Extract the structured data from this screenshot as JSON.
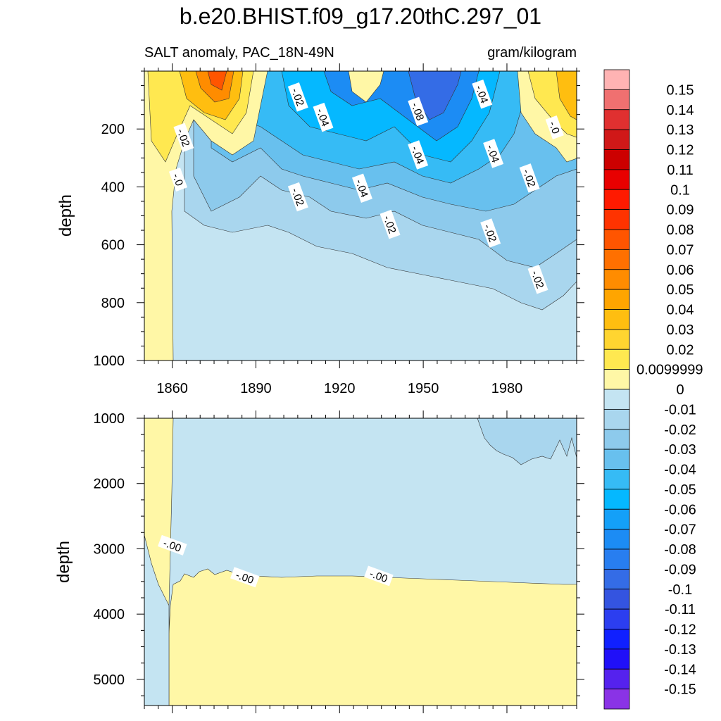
{
  "figure": {
    "title": "b.e20.BHIST.f09_g17.20thC.297_01",
    "subtitle_left": "SALT anomaly, PAC_18N-49N",
    "subtitle_right": "gram/kilogram"
  },
  "chart_data": {
    "type": "heatmap",
    "title": "b.e20.BHIST.f09_g17.20thC.297_01",
    "variable": "SALT anomaly, PAC_18N-49N",
    "units": "gram/kilogram",
    "xlabel": "",
    "ylabel": "depth",
    "x_range": [
      1850,
      2005
    ],
    "x_ticks": [
      1860,
      1890,
      1920,
      1950,
      1980
    ],
    "x_tick_labels": [
      "1860",
      "1890",
      "1920",
      "1950",
      "1980"
    ],
    "panels": [
      {
        "name": "upper",
        "ylabel": "depth",
        "ylim": [
          0,
          1000
        ],
        "y_inverted": true,
        "y_ticks": [
          200,
          400,
          600,
          800,
          1000
        ],
        "y_tick_labels": [
          "200",
          "400",
          "600",
          "800",
          "1000"
        ],
        "contour_labels": [
          {
            "text": "-.02",
            "x": 1905,
            "y": 90
          },
          {
            "text": "-.04",
            "x": 1914,
            "y": 160
          },
          {
            "text": "-.08",
            "x": 1948,
            "y": 140
          },
          {
            "text": "-.04",
            "x": 1971,
            "y": 80
          },
          {
            "text": "-.0",
            "x": 1997,
            "y": 195
          },
          {
            "text": "-.02",
            "x": 1864,
            "y": 230
          },
          {
            "text": "-.04",
            "x": 1948,
            "y": 290
          },
          {
            "text": "-.04",
            "x": 1975,
            "y": 285
          },
          {
            "text": "-.0",
            "x": 1862,
            "y": 375
          },
          {
            "text": "-.02",
            "x": 1905,
            "y": 435
          },
          {
            "text": "-.04",
            "x": 1928,
            "y": 405
          },
          {
            "text": "-.02",
            "x": 1988,
            "y": 370
          },
          {
            "text": "-.02",
            "x": 1938,
            "y": 530
          },
          {
            "text": "-.02",
            "x": 1974,
            "y": 560
          },
          {
            "text": "-.02",
            "x": 1991,
            "y": 720
          }
        ]
      },
      {
        "name": "lower",
        "ylabel": "depth",
        "ylim": [
          1000,
          5400
        ],
        "y_inverted": true,
        "y_ticks": [
          1000,
          2000,
          3000,
          4000,
          5000
        ],
        "y_tick_labels": [
          "1000",
          "2000",
          "3000",
          "4000",
          "5000"
        ],
        "contour_labels": [
          {
            "text": "-.00",
            "x": 1860,
            "y": 2950
          },
          {
            "text": "-.00",
            "x": 1886,
            "y": 3440
          },
          {
            "text": "-.00",
            "x": 1934,
            "y": 3420
          }
        ]
      }
    ],
    "colorbar": {
      "labels": [
        "0.15",
        "0.14",
        "0.13",
        "0.12",
        "0.11",
        "0.1",
        "0.09",
        "0.08",
        "0.07",
        "0.06",
        "0.05",
        "0.04",
        "0.03",
        "0.02",
        "0.0099999",
        "0",
        "-0.01",
        "-0.02",
        "-0.03",
        "-0.04",
        "-0.05",
        "-0.06",
        "-0.07",
        "-0.08",
        "-0.09",
        "-0.1",
        "-0.11",
        "-0.12",
        "-0.13",
        "-0.14",
        "-0.15"
      ],
      "colors": [
        "#ffb3b3",
        "#f07070",
        "#e03030",
        "#d01818",
        "#cc0000",
        "#e80000",
        "#ff1a00",
        "#ff3300",
        "#ff5500",
        "#ff7000",
        "#ff8c00",
        "#ffa500",
        "#ffbe10",
        "#ffd530",
        "#ffe850",
        "#fff7a6",
        "#c4e4f2",
        "#a9d6ee",
        "#8dcaec",
        "#68c0ee",
        "#36bbf5",
        "#05b8ff",
        "#14a0f8",
        "#1c8cf4",
        "#287ef0",
        "#346ce6",
        "#3454e0",
        "#2c3ef0",
        "#1020ff",
        "#2010f8",
        "#5522ee",
        "#8a33e6"
      ]
    }
  }
}
